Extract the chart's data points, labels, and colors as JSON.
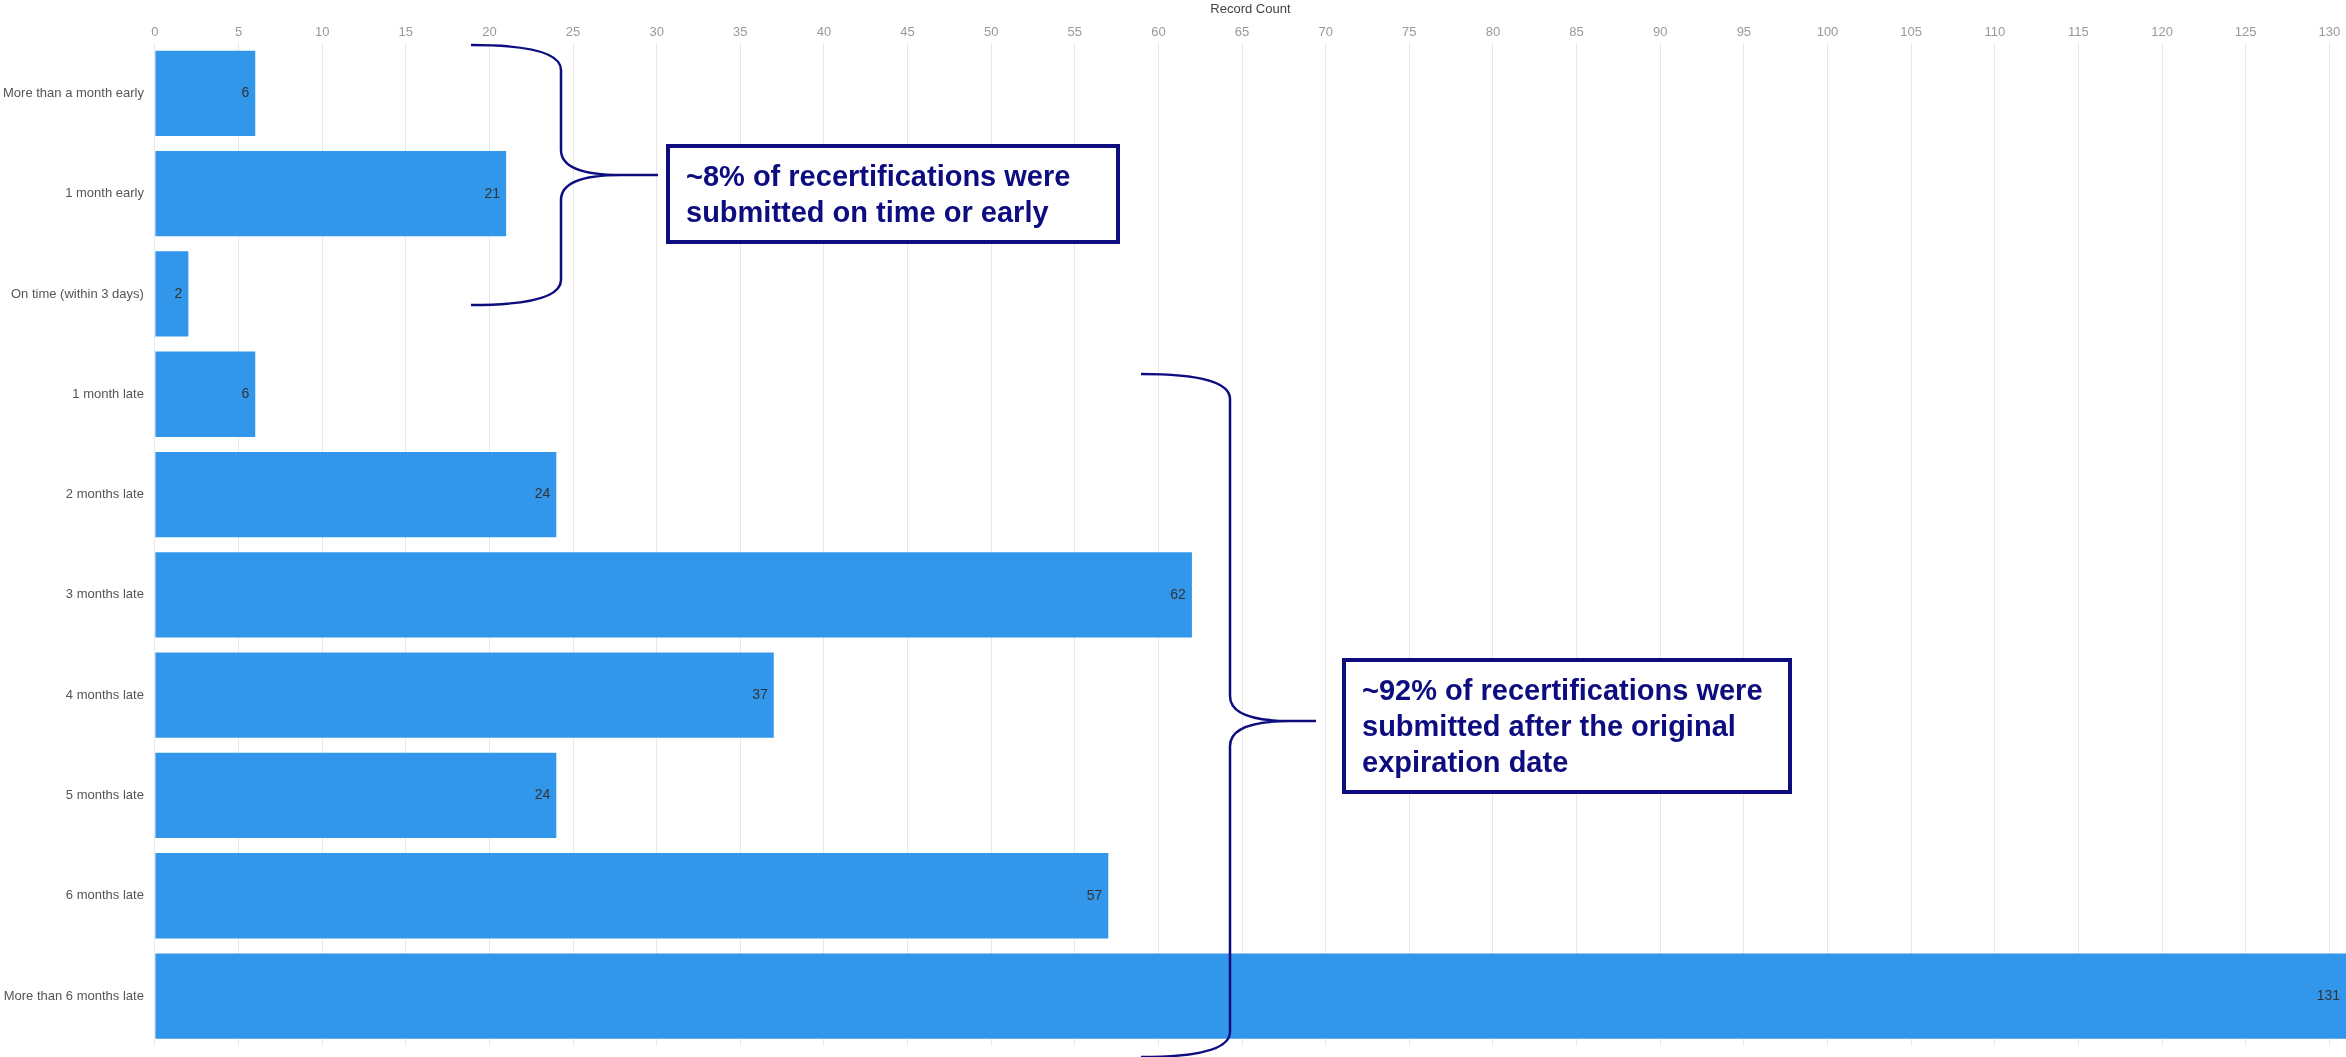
{
  "chart_data": {
    "type": "bar",
    "orientation": "horizontal",
    "xlabel": "Record Count",
    "categories": [
      "More than a month early",
      "1 month early",
      "On time (within 3 days)",
      "1 month late",
      "2 months late",
      "3 months late",
      "4 months late",
      "5 months late",
      "6 months late",
      "More than 6 months late"
    ],
    "values": [
      6,
      21,
      2,
      6,
      24,
      62,
      37,
      24,
      57,
      131
    ],
    "color": "#3296ea",
    "data_labels": true,
    "xlim": [
      0,
      131
    ],
    "xticks": [
      0,
      5,
      10,
      15,
      20,
      25,
      30,
      35,
      40,
      45,
      50,
      55,
      60,
      65,
      70,
      75,
      80,
      85,
      90,
      95,
      100,
      105,
      110,
      115,
      120,
      125,
      130
    ],
    "grid": "x",
    "legend": false,
    "annotations": [
      "~8% of recertifications were submitted on time or early",
      "~92% of recertifications were submitted after the original expiration date"
    ]
  }
}
